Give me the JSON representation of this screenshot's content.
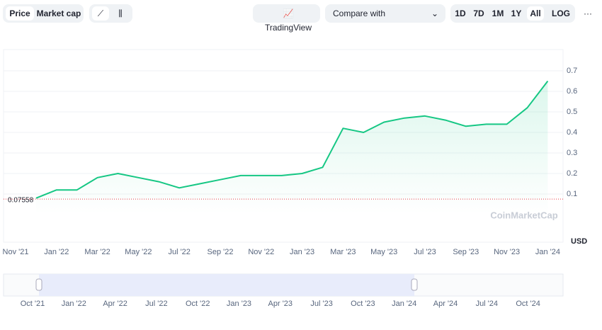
{
  "toolbar": {
    "tabs": [
      "Price",
      "Market cap"
    ],
    "tradingview": "TradingView",
    "compare": "Compare with",
    "ranges": [
      "1D",
      "7D",
      "1M",
      "1Y",
      "All"
    ],
    "log": "LOG",
    "more": "···"
  },
  "chart_data": {
    "type": "line",
    "categories": [
      "Nov '21",
      null,
      "Jan '22",
      null,
      "Mar '22",
      null,
      "May '22",
      null,
      "Jul '22",
      null,
      "Sep '22",
      null,
      "Nov '22",
      null,
      "Jan '23",
      null,
      "Mar '23",
      null,
      "May '23",
      null,
      "Jul '23",
      null,
      "Sep '23",
      null,
      "Nov '23",
      null,
      "Jan '24"
    ],
    "values": [
      null,
      0.08,
      0.12,
      0.12,
      0.18,
      0.2,
      0.18,
      0.16,
      0.13,
      0.15,
      0.17,
      0.19,
      0.19,
      0.19,
      0.2,
      0.23,
      0.42,
      0.4,
      0.45,
      0.47,
      0.48,
      0.46,
      0.43,
      0.44,
      0.44,
      0.52,
      0.65
    ],
    "color": "#16c784",
    "ylim": [
      0,
      0.8
    ],
    "yticks": [
      0.1,
      0.2,
      0.3,
      0.4,
      0.5,
      0.6,
      0.7
    ],
    "grid": true,
    "reference_line": 0.07558,
    "currency": "USD",
    "watermark": "CoinMarketCap"
  },
  "navigator": {
    "labels": [
      "Oct '21",
      "Jan '22",
      "Apr '22",
      "Jul '22",
      "Oct '22",
      "Jan '23",
      "Apr '23",
      "Jul '23",
      "Oct '23",
      "Jan '24",
      "Apr '24",
      "Jul '24",
      "Oct '24"
    ]
  }
}
